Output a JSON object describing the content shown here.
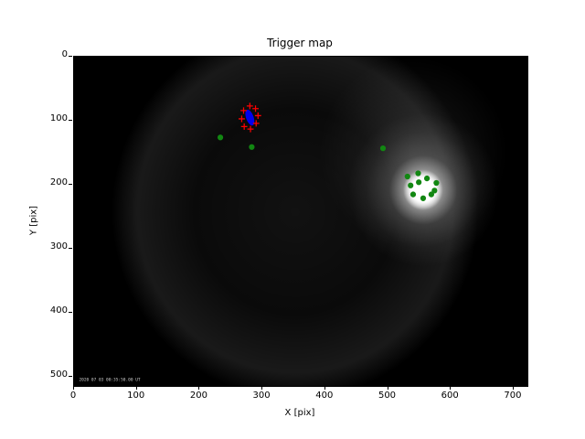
{
  "chart_data": {
    "type": "scatter",
    "title": "Trigger map",
    "xlabel": "X [pix]",
    "ylabel": "Y [pix]",
    "xlim": [
      0,
      722
    ],
    "ylim": [
      514,
      0
    ],
    "grid": false,
    "legend": "none",
    "x_ticks": [
      0,
      100,
      200,
      300,
      400,
      500,
      600,
      700
    ],
    "y_ticks": [
      0,
      100,
      200,
      300,
      400,
      500
    ],
    "colors": {
      "trigger_points": "#128712",
      "cluster_ellipse": "#0000ee",
      "cluster_markers": "#ff0000",
      "image_background": "#000000",
      "timestamp_text": "#cccccc"
    },
    "series": [
      {
        "name": "trigger-pixels-green",
        "marker": "dot",
        "points": [
          [
            233,
            126
          ],
          [
            283,
            141
          ],
          [
            492,
            143
          ],
          [
            531,
            187
          ],
          [
            548,
            182
          ],
          [
            562,
            190
          ],
          [
            577,
            197
          ],
          [
            536,
            201
          ],
          [
            549,
            196
          ],
          [
            574,
            209
          ],
          [
            540,
            215
          ],
          [
            556,
            221
          ],
          [
            569,
            215
          ]
        ]
      },
      {
        "name": "cluster-outline-red",
        "marker": "plus",
        "points": [
          [
            280,
            77
          ],
          [
            289,
            81
          ],
          [
            293,
            92
          ],
          [
            290,
            104
          ],
          [
            281,
            113
          ],
          [
            271,
            109
          ],
          [
            267,
            97
          ],
          [
            270,
            84
          ]
        ]
      }
    ],
    "ellipse": {
      "cx": 280,
      "cy": 95,
      "rx": 6,
      "ry": 13,
      "angle": -20
    },
    "background_image": {
      "description": "grayscale camera frame, dark with circular field of view",
      "vignette": {
        "cx": 352,
        "cy": 242,
        "r": 292
      },
      "soft_glow": {
        "cx": 540,
        "cy": 150,
        "r": 150
      },
      "bright_blob": {
        "cx": 556,
        "cy": 208,
        "r_glow": 120,
        "r_core": 32
      },
      "timestamp": "2020 07 03 00:35:50.00 UT",
      "timestamp_x": 8,
      "timestamp_y": 506
    }
  }
}
